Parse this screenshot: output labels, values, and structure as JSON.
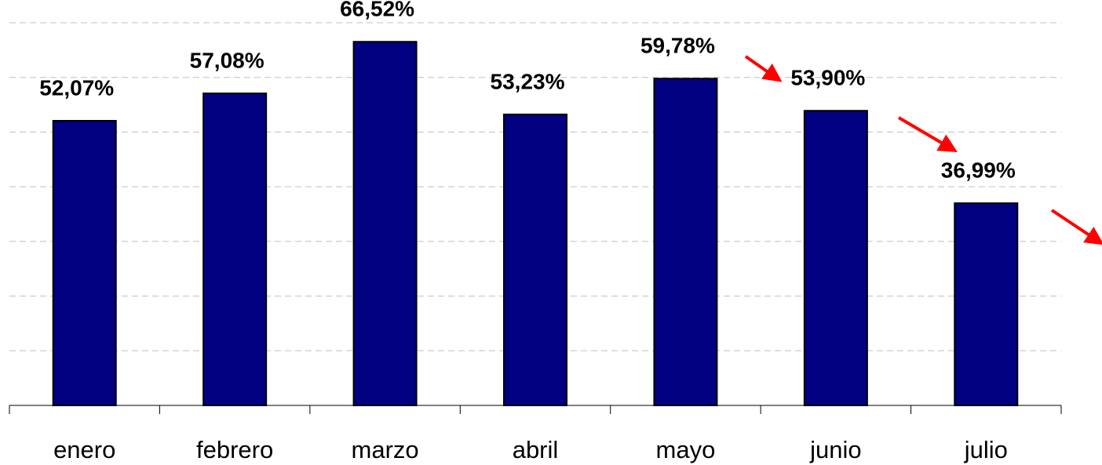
{
  "chart_data": {
    "type": "bar",
    "categories": [
      "enero",
      "febrero",
      "marzo",
      "abril",
      "mayo",
      "junio",
      "julio"
    ],
    "values": [
      52.07,
      57.08,
      66.52,
      53.23,
      59.78,
      53.9,
      36.99
    ],
    "value_labels": [
      "52,07%",
      "57,08%",
      "66,52%",
      "53,23%",
      "59,78%",
      "53,90%",
      "36,99%"
    ],
    "color": "#000080",
    "ylim": [
      0,
      70
    ],
    "yticks": [
      0,
      10,
      20,
      30,
      40,
      50,
      60,
      70
    ],
    "grid": true
  }
}
